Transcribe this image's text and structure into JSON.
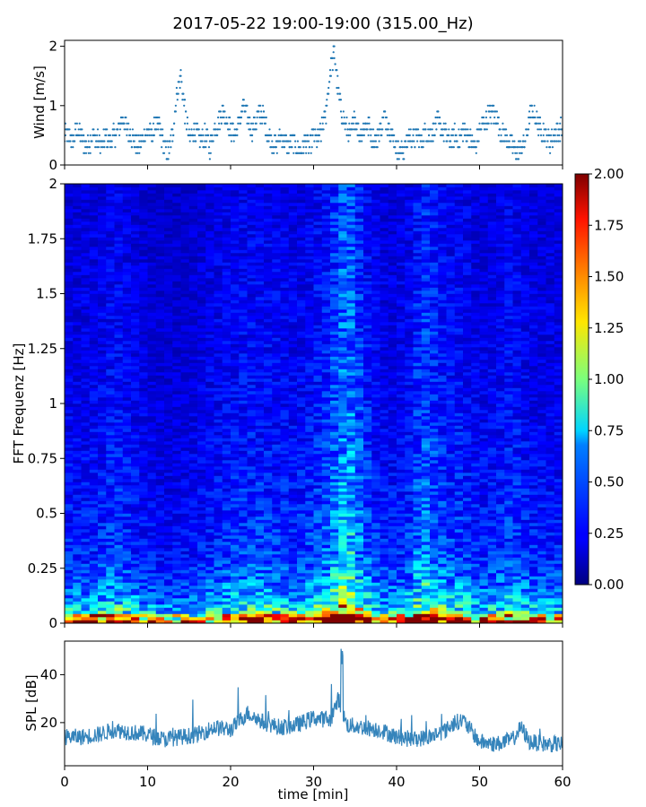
{
  "figure": {
    "title": "2017-05-22 19:00-19:00 (315.00_Hz)",
    "xlabel": "time [min]"
  },
  "chart_data": [
    {
      "type": "scatter",
      "ylabel": "Wind [m/s]",
      "xlim": [
        0,
        60
      ],
      "ylim": [
        0,
        2.1
      ],
      "yticks": [
        {
          "value": 0,
          "label": "0"
        },
        {
          "value": 1,
          "label": "1"
        },
        {
          "value": 2,
          "label": "2"
        }
      ],
      "marker_color": "#1f77b4",
      "series": [
        {
          "x": [
            0.5,
            1,
            1.5,
            2,
            2.5,
            3,
            3.5,
            4,
            4.5,
            5,
            5.5,
            6,
            6.5,
            7,
            7.5,
            8,
            8.5,
            9,
            9.5,
            10,
            10.5,
            11,
            11.5,
            12,
            12.5,
            13,
            13.5,
            14,
            14.5,
            15,
            15.5,
            16,
            16.5,
            17,
            17.5,
            18,
            18.5,
            19,
            19.5,
            20,
            20.5,
            21,
            21.5,
            22,
            22.5,
            23,
            23.5,
            24,
            24.5,
            25,
            25.5,
            26,
            26.5,
            27,
            27.5,
            28,
            28.5,
            29,
            29.5,
            30,
            30.5,
            31,
            31.5,
            32,
            32.5,
            33,
            33.5,
            34,
            34.5,
            35,
            35.5,
            36,
            36.5,
            37,
            37.5,
            38,
            38.5,
            39,
            39.5,
            40,
            40.5,
            41,
            41.5,
            42,
            42.5,
            43,
            43.5,
            44,
            44.5,
            45,
            45.5,
            46,
            46.5,
            47,
            47.5,
            48,
            48.5,
            49,
            49.5,
            50,
            50.5,
            51,
            51.5,
            52,
            52.5,
            53,
            53.5,
            54,
            54.5,
            55,
            55.5,
            56,
            56.5,
            57,
            57.5,
            58,
            58.5,
            59,
            59.5
          ],
          "y": [
            0.5,
            0.4,
            0.6,
            0.5,
            0.3,
            0.4,
            0.5,
            0.4,
            0.3,
            0.5,
            0.4,
            0.5,
            0.6,
            0.8,
            0.6,
            0.5,
            0.4,
            0.3,
            0.5,
            0.6,
            0.5,
            0.7,
            0.6,
            0.3,
            0.2,
            0.5,
            1.2,
            1.5,
            0.9,
            0.4,
            0.6,
            0.5,
            0.4,
            0.5,
            0.3,
            0.6,
            0.7,
            0.9,
            0.8,
            0.6,
            0.5,
            0.7,
            1.0,
            0.8,
            0.6,
            0.7,
            0.9,
            0.8,
            0.5,
            0.4,
            0.3,
            0.5,
            0.4,
            0.3,
            0.4,
            0.3,
            0.2,
            0.4,
            0.3,
            0.5,
            0.4,
            0.6,
            0.9,
            1.6,
            1.9,
            1.2,
            0.8,
            0.6,
            0.5,
            0.8,
            0.5,
            0.6,
            0.7,
            0.5,
            0.4,
            0.6,
            0.8,
            0.7,
            0.5,
            0.3,
            0.2,
            0.3,
            0.5,
            0.4,
            0.5,
            0.4,
            0.6,
            0.5,
            0.6,
            0.7,
            0.6,
            0.5,
            0.4,
            0.5,
            0.4,
            0.6,
            0.5,
            0.4,
            0.3,
            0.6,
            0.7,
            0.8,
            0.9,
            0.8,
            0.6,
            0.5,
            0.4,
            0.3,
            0.2,
            0.3,
            0.4,
            0.8,
            0.9,
            0.7,
            0.6,
            0.5,
            0.4,
            0.5,
            0.6
          ]
        }
      ]
    },
    {
      "type": "heatmap",
      "ylabel": "FFT Frequenz [Hz]",
      "xlim": [
        0,
        60
      ],
      "ylim": [
        0,
        2
      ],
      "yticks": [
        {
          "value": 0,
          "label": "0"
        },
        {
          "value": 0.25,
          "label": "0.25"
        },
        {
          "value": 0.5,
          "label": "0.5"
        },
        {
          "value": 0.75,
          "label": "0.75"
        },
        {
          "value": 1,
          "label": "1"
        },
        {
          "value": 1.25,
          "label": "1.25"
        },
        {
          "value": 1.5,
          "label": "1.5"
        },
        {
          "value": 1.75,
          "label": "1.75"
        },
        {
          "value": 2,
          "label": "2"
        }
      ],
      "colormap": "jet",
      "clim": [
        0,
        2
      ],
      "colorbar_ticks": [
        {
          "value": 0,
          "label": "0.00"
        },
        {
          "value": 0.25,
          "label": "0.25"
        },
        {
          "value": 0.5,
          "label": "0.50"
        },
        {
          "value": 0.75,
          "label": "0.75"
        },
        {
          "value": 1,
          "label": "1.00"
        },
        {
          "value": 1.25,
          "label": "1.25"
        },
        {
          "value": 1.5,
          "label": "1.50"
        },
        {
          "value": 1.75,
          "label": "1.75"
        },
        {
          "value": 2,
          "label": "2.00"
        }
      ],
      "time_profile": {
        "x": [
          0,
          2,
          4,
          6,
          8,
          10,
          12,
          14,
          16,
          18,
          20,
          22,
          24,
          26,
          28,
          30,
          32,
          33,
          34,
          36,
          38,
          40,
          42,
          43,
          44,
          46,
          48,
          50,
          52,
          54,
          56,
          58,
          60
        ],
        "level": [
          0.25,
          0.24,
          0.26,
          0.3,
          0.26,
          0.22,
          0.2,
          0.2,
          0.22,
          0.26,
          0.28,
          0.3,
          0.3,
          0.28,
          0.26,
          0.3,
          0.38,
          0.5,
          0.6,
          0.35,
          0.25,
          0.24,
          0.3,
          0.45,
          0.4,
          0.3,
          0.3,
          0.24,
          0.26,
          0.3,
          0.25,
          0.24,
          0.24
        ]
      },
      "frequency_profile": {
        "freq": [
          0,
          0.02,
          0.05,
          0.1,
          0.2,
          0.3,
          0.5,
          0.75,
          1.0,
          1.5,
          2.0
        ],
        "level": [
          1.2,
          0.9,
          0.75,
          0.55,
          0.4,
          0.32,
          0.28,
          0.25,
          0.22,
          0.2,
          0.18
        ]
      }
    },
    {
      "type": "line",
      "ylabel": "SPL [dB]",
      "xlim": [
        0,
        60
      ],
      "ylim": [
        2,
        54
      ],
      "yticks": [
        {
          "value": 20,
          "label": "20"
        },
        {
          "value": 40,
          "label": "40"
        }
      ],
      "xticks": [
        {
          "value": 0,
          "label": "0"
        },
        {
          "value": 10,
          "label": "10"
        },
        {
          "value": 20,
          "label": "20"
        },
        {
          "value": 30,
          "label": "30"
        },
        {
          "value": 40,
          "label": "40"
        },
        {
          "value": 50,
          "label": "50"
        },
        {
          "value": 60,
          "label": "60"
        }
      ],
      "line_color": "#1f77b4",
      "series": [
        {
          "x": [
            0,
            2,
            4,
            6,
            8,
            10,
            12,
            14,
            16,
            18,
            20,
            22,
            24,
            26,
            28,
            30,
            32,
            33,
            34,
            36,
            38,
            40,
            42,
            44,
            46,
            47,
            48,
            50,
            52,
            54,
            55,
            56,
            58,
            60
          ],
          "y": [
            14,
            14,
            15,
            17,
            16,
            15,
            13,
            14,
            15,
            18,
            17,
            24,
            20,
            18,
            19,
            22,
            21,
            30,
            19,
            18,
            17,
            14,
            13,
            14,
            17,
            20,
            21,
            12,
            11,
            13,
            18,
            12,
            11,
            11
          ]
        }
      ]
    }
  ]
}
